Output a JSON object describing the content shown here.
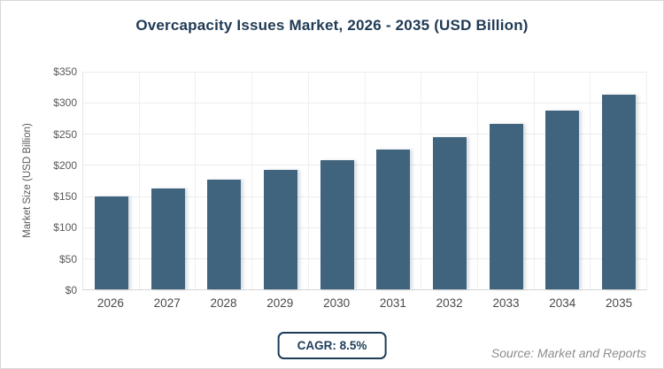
{
  "title": "Overcapacity Issues Market, 2026 - 2035 (USD Billion)",
  "chart_data": {
    "type": "bar",
    "categories": [
      "2026",
      "2027",
      "2028",
      "2029",
      "2030",
      "2031",
      "2032",
      "2033",
      "2034",
      "2035"
    ],
    "values": [
      150.0,
      162.8,
      176.6,
      191.6,
      207.9,
      225.5,
      244.7,
      265.5,
      288.1,
      312.6
    ],
    "title": "Overcapacity Issues Market, 2026 - 2035 (USD Billion)",
    "xlabel": "",
    "ylabel": "Market Size (USD Billion)",
    "ylim": [
      0,
      350
    ],
    "ytick_step": 50,
    "ytick_labels": [
      "$0",
      "$50",
      "$100",
      "$150",
      "$200",
      "$250",
      "$300",
      "$350"
    ],
    "grid": true,
    "legend": false,
    "bar_color": "#41647E"
  },
  "footer": {
    "cagr_label": "CAGR: 8.5%",
    "source": "Source: Market and Reports"
  },
  "colors": {
    "title_text": "#1f3a54",
    "bar": "#41647E",
    "gridline": "#ececec",
    "axis_line": "#d6d6d6",
    "tick_text": "#595959",
    "x_label_text": "#4a4a4a",
    "badge_accent": "#1d3c5a",
    "source_text": "#8d8d8d",
    "card_border": "#d8d8d8"
  }
}
